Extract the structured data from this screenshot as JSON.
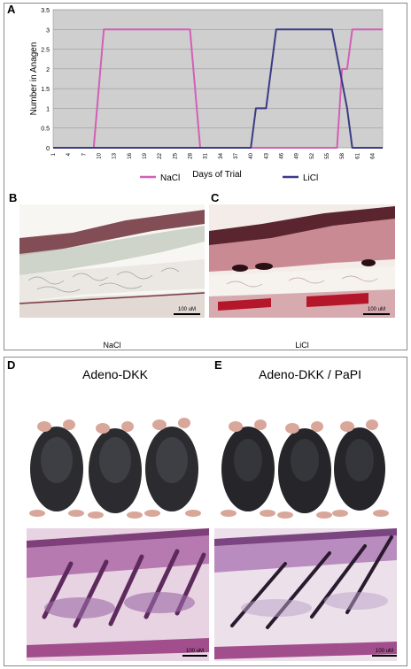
{
  "panels": {
    "A": "A",
    "B": "B",
    "C": "C",
    "D": "D",
    "E": "E"
  },
  "chart_data": {
    "type": "line",
    "ylabel": "Number in Anagen",
    "xlabel": "Days of Trial",
    "ylim": [
      0,
      3.5
    ],
    "yticks": [
      "0",
      "0.5",
      "1",
      "1.5",
      "2",
      "2.5",
      "3",
      "3.5"
    ],
    "xlim": [
      1,
      66
    ],
    "xticks": [
      "1",
      "4",
      "7",
      "10",
      "13",
      "16",
      "19",
      "22",
      "25",
      "28",
      "31",
      "34",
      "37",
      "40",
      "43",
      "46",
      "49",
      "52",
      "55",
      "58",
      "61",
      "64"
    ],
    "grid": true,
    "legend_position": "bottom",
    "series": [
      {
        "name": "NaCl",
        "color": "#d35fb7",
        "points": [
          [
            1,
            0
          ],
          [
            9,
            0
          ],
          [
            11,
            3
          ],
          [
            28,
            3
          ],
          [
            30,
            0
          ],
          [
            57,
            0
          ],
          [
            58,
            2
          ],
          [
            59,
            2
          ],
          [
            60,
            3
          ],
          [
            66,
            3
          ]
        ]
      },
      {
        "name": "LiCl",
        "color": "#3b3a86",
        "points": [
          [
            1,
            0
          ],
          [
            40,
            0
          ],
          [
            41,
            1
          ],
          [
            43,
            1
          ],
          [
            45,
            3
          ],
          [
            56,
            3
          ],
          [
            59,
            1
          ],
          [
            60,
            0
          ],
          [
            66,
            0
          ]
        ]
      }
    ]
  },
  "histology": {
    "B_label": "NaCl",
    "C_label": "LiCl",
    "scale": "100 uM"
  },
  "mice": {
    "D_title": "Adeno-DKK",
    "E_title": "Adeno-DKK / PaPI",
    "scale": "100 uM"
  }
}
